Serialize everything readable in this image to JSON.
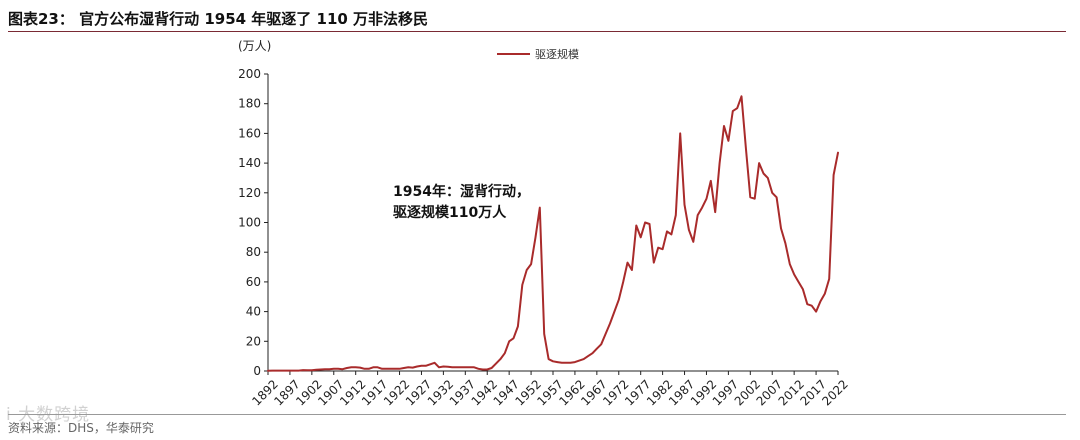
{
  "figure": {
    "title": "图表23： 官方公布湿背行动 1954 年驱逐了 110 万非法移民",
    "source": "资料来源：DHS，华泰研究",
    "watermark": "i 大数跨境"
  },
  "colors": {
    "series": "#a92b2b",
    "axis": "#222222",
    "rule": "#7a2a34"
  },
  "chart_data": {
    "type": "line",
    "title": "官方公布湿背行动 1954 年驱逐了 110 万非法移民",
    "ylabel": "(万人)",
    "xlabel": "",
    "ylim": [
      0,
      200
    ],
    "yticks": [
      0,
      20,
      40,
      60,
      80,
      100,
      120,
      140,
      160,
      180,
      200
    ],
    "xlim": [
      1892,
      2022
    ],
    "xticks": [
      1892,
      1897,
      1902,
      1907,
      1912,
      1917,
      1922,
      1927,
      1932,
      1937,
      1942,
      1947,
      1952,
      1957,
      1962,
      1967,
      1972,
      1977,
      1982,
      1987,
      1992,
      1997,
      2002,
      2007,
      2012,
      2017,
      2022
    ],
    "legend": [
      "驱逐规模"
    ],
    "legend_position": "top-center",
    "grid": false,
    "annotation": {
      "lines": [
        "1954年：湿背行动，",
        "驱逐规模110万人"
      ],
      "x": 1954,
      "y": 110
    },
    "series": [
      {
        "name": "驱逐规模",
        "x": [
          1892,
          1893,
          1894,
          1895,
          1896,
          1897,
          1898,
          1899,
          1900,
          1901,
          1902,
          1903,
          1904,
          1905,
          1906,
          1907,
          1908,
          1909,
          1910,
          1911,
          1912,
          1913,
          1914,
          1915,
          1916,
          1917,
          1918,
          1919,
          1920,
          1921,
          1922,
          1923,
          1924,
          1925,
          1926,
          1927,
          1928,
          1929,
          1930,
          1931,
          1932,
          1933,
          1934,
          1935,
          1936,
          1937,
          1938,
          1939,
          1940,
          1941,
          1942,
          1943,
          1944,
          1945,
          1946,
          1947,
          1948,
          1949,
          1950,
          1951,
          1952,
          1953,
          1954,
          1955,
          1956,
          1957,
          1958,
          1959,
          1960,
          1961,
          1962,
          1963,
          1964,
          1965,
          1966,
          1967,
          1968,
          1969,
          1970,
          1971,
          1972,
          1973,
          1974,
          1975,
          1976,
          1977,
          1978,
          1979,
          1980,
          1981,
          1982,
          1983,
          1984,
          1985,
          1986,
          1987,
          1988,
          1989,
          1990,
          1991,
          1992,
          1993,
          1994,
          1995,
          1996,
          1997,
          1998,
          1999,
          2000,
          2001,
          2002,
          2003,
          2004,
          2005,
          2006,
          2007,
          2008,
          2009,
          2010,
          2011,
          2012,
          2013,
          2014,
          2015,
          2016,
          2017,
          2018,
          2019,
          2020,
          2021,
          2022
        ],
        "values": [
          0.2,
          0.3,
          0.3,
          0.3,
          0.3,
          0.3,
          0.3,
          0.3,
          0.6,
          0.5,
          0.5,
          0.8,
          1.0,
          1.2,
          1.2,
          1.5,
          1.5,
          1.2,
          2.0,
          2.5,
          2.5,
          2.3,
          1.5,
          1.5,
          2.5,
          2.5,
          1.5,
          1.5,
          1.5,
          1.5,
          1.5,
          2.0,
          2.5,
          2.3,
          3.0,
          3.5,
          3.5,
          4.5,
          5.5,
          2.5,
          3.0,
          2.8,
          2.5,
          2.5,
          2.5,
          2.5,
          2.5,
          2.5,
          1.5,
          1.0,
          1.0,
          2.0,
          5.0,
          8.0,
          12.0,
          20.0,
          22.0,
          30.0,
          58.0,
          68.0,
          72.0,
          90.0,
          110.0,
          25.0,
          8.0,
          6.5,
          6.0,
          5.5,
          5.5,
          5.5,
          6.0,
          7.0,
          8.0,
          10.0,
          12.0,
          15.0,
          18.0,
          25.0,
          32.0,
          40.0,
          48.0,
          60.0,
          73.0,
          68.0,
          98.0,
          90.0,
          100.0,
          99.0,
          73.0,
          83.0,
          82.0,
          94.0,
          92.0,
          105.0,
          160.0,
          112.0,
          95.0,
          87.0,
          105.0,
          110.0,
          116.0,
          128.0,
          107.0,
          140.0,
          165.0,
          155.0,
          175.0,
          177.0,
          185.0,
          150.0,
          117.0,
          116.0,
          140.0,
          133.0,
          130.0,
          120.0,
          117.0,
          96.0,
          86.0,
          72.0,
          65.0,
          60.0,
          55.0,
          45.0,
          44.0,
          40.0,
          47.0,
          52.0,
          62.0,
          132.0,
          147.0
        ]
      }
    ]
  }
}
